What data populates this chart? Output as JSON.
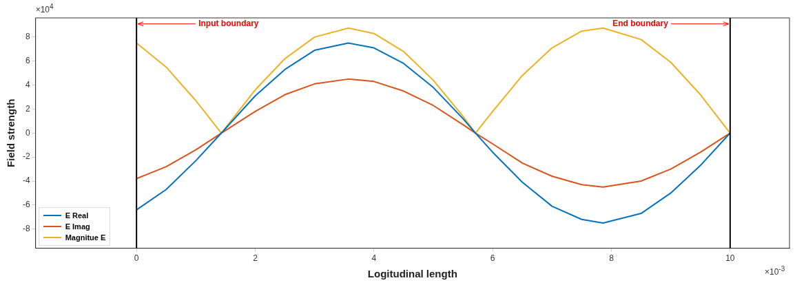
{
  "chart_data": {
    "type": "line",
    "xlabel": "Logitudinal length",
    "ylabel": "Field strength",
    "x": [
      0,
      0.5,
      1,
      1.43,
      2,
      2.5,
      3,
      3.57,
      4,
      4.5,
      5,
      5.5,
      5.71,
      6,
      6.5,
      7,
      7.5,
      7.86,
      8.5,
      9,
      9.5,
      10
    ],
    "series": [
      {
        "name": "E Real",
        "color": "#0072bd",
        "values": [
          -6.4,
          -4.7,
          -2.3,
          0,
          3.1,
          5.3,
          6.9,
          7.5,
          7.1,
          5.8,
          3.8,
          1.2,
          0,
          -1.6,
          -4.1,
          -6.1,
          -7.2,
          -7.5,
          -6.7,
          -5.0,
          -2.7,
          0
        ]
      },
      {
        "name": "E Imag",
        "color": "#d95319",
        "values": [
          -3.8,
          -2.8,
          -1.4,
          0,
          1.8,
          3.2,
          4.1,
          4.5,
          4.3,
          3.5,
          2.3,
          0.7,
          0,
          -0.9,
          -2.5,
          -3.6,
          -4.3,
          -4.5,
          -4.0,
          -3.0,
          -1.6,
          0
        ]
      },
      {
        "name": "Magnitue E",
        "color": "#edb120",
        "values": [
          7.5,
          5.5,
          2.7,
          0,
          3.6,
          6.2,
          8.0,
          8.75,
          8.3,
          6.8,
          4.4,
          1.4,
          0,
          1.8,
          4.8,
          7.1,
          8.5,
          8.75,
          7.8,
          5.9,
          3.2,
          0
        ]
      }
    ],
    "xlim": [
      -1.7,
      11
    ],
    "xticks": [
      0,
      2,
      4,
      6,
      8,
      10
    ],
    "ylim": [
      -9.6,
      9.6
    ],
    "yticks": [
      -8,
      -6,
      -4,
      -2,
      0,
      2,
      4,
      6,
      8
    ],
    "ref_lines": [
      {
        "axis": "x",
        "value": 0,
        "color": "#000000"
      },
      {
        "axis": "x",
        "value": 10,
        "color": "#000000"
      }
    ],
    "annotations": [
      {
        "text": "Input boundary",
        "x": 0,
        "y": 9.1
      },
      {
        "text": "End boundary",
        "x": 10,
        "y": 9.1
      },
      "×10$^{4}$",
      "×10$^{-3}$"
    ],
    "legend": "bottom left",
    "grid": false,
    "marker": "none",
    "line_style": "solid"
  }
}
